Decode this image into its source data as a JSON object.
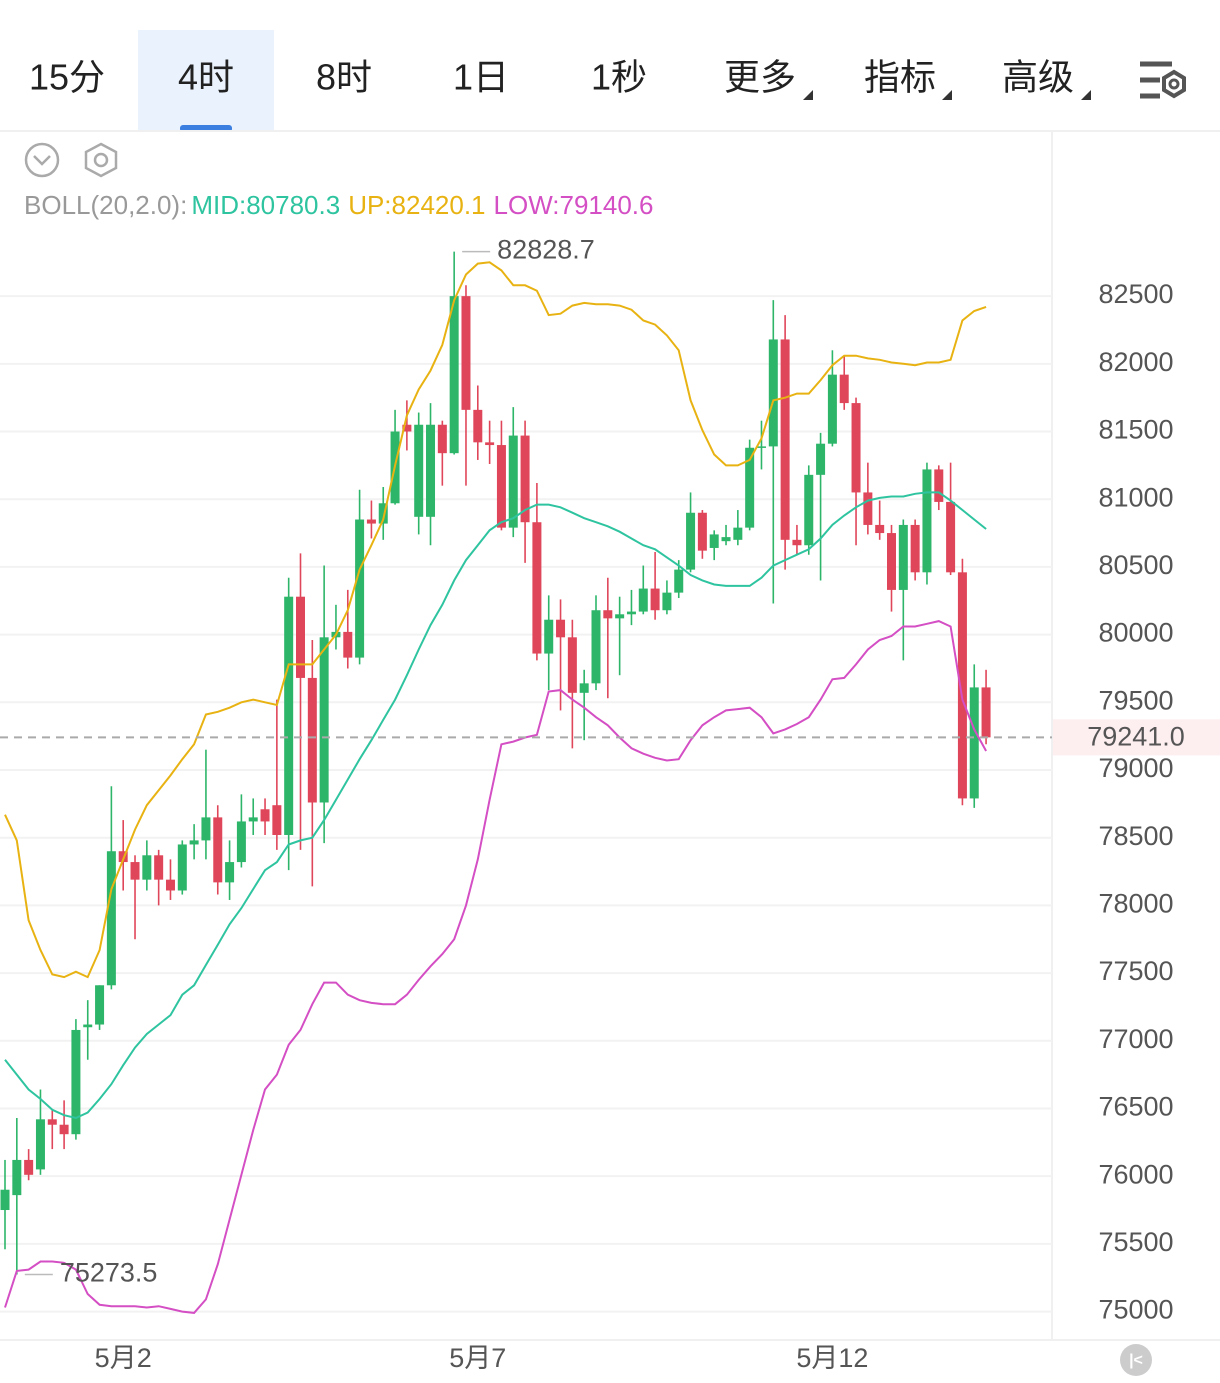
{
  "tabs": [
    "15分",
    "4时",
    "8时",
    "1日",
    "1秒",
    "更多",
    "指标",
    "高级"
  ],
  "selected_tab": 1,
  "chart_data": {
    "type": "candlestick",
    "indicator_label": "BOLL(20,2.0):",
    "categories": [
      null,
      null,
      null,
      null,
      null,
      null,
      null,
      null,
      null,
      null,
      "5月2",
      null,
      null,
      null,
      null,
      null,
      null,
      null,
      null,
      null,
      null,
      null,
      null,
      null,
      null,
      null,
      null,
      null,
      null,
      null,
      null,
      null,
      null,
      null,
      null,
      null,
      null,
      null,
      null,
      null,
      "5月7",
      null,
      null,
      null,
      null,
      null,
      null,
      null,
      null,
      null,
      null,
      null,
      null,
      null,
      null,
      null,
      null,
      null,
      null,
      null,
      null,
      null,
      null,
      null,
      null,
      null,
      null,
      null,
      null,
      null,
      "5月12",
      null,
      null,
      null,
      null,
      null,
      null,
      null,
      null,
      null,
      null,
      null,
      null,
      null
    ],
    "up_color": "#2db56a",
    "down_color": "#e0465a",
    "open": [
      75750,
      75860,
      76120,
      76050,
      76420,
      76380,
      76310,
      77100,
      77120,
      77410,
      78400,
      78320,
      78190,
      78370,
      78190,
      78110,
      78450,
      78480,
      78650,
      78170,
      78320,
      78620,
      78710,
      78740,
      78520,
      80280,
      79680,
      78760,
      79980,
      80020,
      79830,
      80850,
      80820,
      80970,
      81550,
      80870,
      80870,
      81550,
      81340,
      82500,
      81660,
      81420,
      81400,
      80790,
      81470,
      80830,
      79860,
      80110,
      79980,
      79570,
      79640,
      80180,
      80120,
      80150,
      80170,
      80340,
      80180,
      80310,
      80480,
      80900,
      80640,
      80690,
      80700,
      80790,
      81380,
      81390,
      82180,
      80700,
      80660,
      81180,
      81410,
      81920,
      81710,
      81050,
      80810,
      80750,
      80330,
      80810,
      80460,
      81220,
      80980,
      80460,
      78790,
      79610
    ],
    "high": [
      76120,
      76430,
      76200,
      76640,
      76490,
      76560,
      77160,
      77300,
      77410,
      78880,
      78630,
      78370,
      78480,
      78410,
      78340,
      78480,
      78600,
      79150,
      78740,
      78480,
      78820,
      78790,
      78790,
      79520,
      80420,
      80600,
      79960,
      80510,
      80220,
      80330,
      81070,
      80990,
      81090,
      81660,
      81730,
      81640,
      81710,
      81580,
      82828.7,
      82580,
      81840,
      81580,
      81580,
      81680,
      81580,
      81120,
      80290,
      80260,
      80110,
      79740,
      80290,
      80420,
      80280,
      80330,
      80510,
      80610,
      80400,
      80550,
      81050,
      80920,
      80770,
      80810,
      80920,
      81440,
      81580,
      82470,
      82360,
      80810,
      81250,
      81490,
      82100,
      82060,
      81750,
      81270,
      80990,
      80810,
      80850,
      80850,
      81270,
      81250,
      81270,
      80560,
      79780,
      79740
    ],
    "low": [
      75460,
      75273.5,
      75970,
      76010,
      76200,
      76200,
      76270,
      76860,
      77080,
      77380,
      78110,
      77750,
      78110,
      78000,
      78040,
      78080,
      78340,
      78340,
      78080,
      78040,
      78280,
      78520,
      78520,
      78410,
      78260,
      78410,
      78140,
      78460,
      79890,
      79750,
      79780,
      80710,
      80700,
      80960,
      81360,
      80740,
      80660,
      81100,
      81330,
      81100,
      81290,
      81260,
      80770,
      80720,
      80530,
      79810,
      79590,
      79440,
      79160,
      79220,
      79590,
      79530,
      79700,
      80070,
      80150,
      80110,
      80150,
      80270,
      80460,
      80560,
      80550,
      80660,
      80660,
      80770,
      81220,
      80230,
      80480,
      80590,
      80590,
      80400,
      81390,
      81660,
      80660,
      80740,
      80700,
      80170,
      79810,
      80400,
      80370,
      80920,
      80440,
      78740,
      78720,
      79190
    ],
    "close": [
      75900,
      76120,
      76010,
      76420,
      76380,
      76310,
      77080,
      77120,
      77410,
      78400,
      78320,
      78190,
      78370,
      78190,
      78110,
      78450,
      78480,
      78650,
      78170,
      78320,
      78620,
      78650,
      78620,
      78520,
      80280,
      79680,
      78760,
      79980,
      80020,
      79830,
      80850,
      80820,
      80970,
      81500,
      81500,
      81550,
      81550,
      81340,
      82500,
      81660,
      81420,
      81400,
      80790,
      81470,
      80830,
      79860,
      80110,
      79980,
      79570,
      79640,
      80180,
      80120,
      80150,
      80170,
      80340,
      80180,
      80310,
      80480,
      80900,
      80620,
      80740,
      80720,
      80790,
      81380,
      81390,
      82180,
      80700,
      80660,
      81180,
      81410,
      81920,
      81710,
      81050,
      80810,
      80750,
      80330,
      80810,
      80460,
      81220,
      80980,
      80460,
      78790,
      79610,
      79241
    ],
    "series": [
      {
        "name": "MID:80780.3",
        "color": "#2fc4a0",
        "values": [
          76860,
          76750,
          76640,
          76570,
          76490,
          76450,
          76430,
          76470,
          76570,
          76680,
          76820,
          76950,
          77050,
          77120,
          77190,
          77340,
          77410,
          77560,
          77710,
          77860,
          77980,
          78120,
          78260,
          78320,
          78450,
          78480,
          78500,
          78630,
          78780,
          78930,
          79080,
          79220,
          79370,
          79520,
          79700,
          79890,
          80070,
          80220,
          80400,
          80550,
          80660,
          80770,
          80830,
          80860,
          80920,
          80960,
          80960,
          80940,
          80900,
          80860,
          80830,
          80800,
          80760,
          80710,
          80660,
          80630,
          80570,
          80510,
          80440,
          80400,
          80370,
          80360,
          80360,
          80360,
          80420,
          80510,
          80550,
          80590,
          80630,
          80710,
          80810,
          80880,
          80940,
          80990,
          81010,
          81020,
          81020,
          81040,
          81050,
          81050,
          80990,
          80920,
          80850,
          80780.3
        ]
      },
      {
        "name": "UP:82420.1",
        "color": "#e8b312",
        "values": [
          78670,
          78480,
          77890,
          77670,
          77490,
          77470,
          77510,
          77470,
          77670,
          78120,
          78340,
          78560,
          78740,
          78850,
          78960,
          79080,
          79190,
          79410,
          79430,
          79460,
          79500,
          79520,
          79500,
          79480,
          79780,
          79780,
          79780,
          79890,
          80000,
          80180,
          80480,
          80660,
          80850,
          81250,
          81620,
          81810,
          81950,
          82140,
          82470,
          82660,
          82740,
          82750,
          82690,
          82580,
          82580,
          82540,
          82360,
          82370,
          82430,
          82450,
          82440,
          82440,
          82430,
          82400,
          82320,
          82290,
          82210,
          82100,
          81730,
          81510,
          81330,
          81250,
          81250,
          81290,
          81450,
          81730,
          81750,
          81780,
          81780,
          81880,
          81990,
          82060,
          82060,
          82040,
          82030,
          82010,
          82000,
          81990,
          82010,
          82010,
          82030,
          82320,
          82390,
          82420.1
        ]
      },
      {
        "name": "LOW:79140.6",
        "color": "#d44ec4",
        "values": [
          75030,
          75300,
          75310,
          75370,
          75370,
          75360,
          75310,
          75130,
          75050,
          75040,
          75040,
          75040,
          75030,
          75040,
          75020,
          75000,
          74990,
          75090,
          75350,
          75680,
          76010,
          76340,
          76640,
          76750,
          76970,
          77080,
          77270,
          77430,
          77430,
          77340,
          77300,
          77280,
          77270,
          77270,
          77340,
          77450,
          77550,
          77640,
          77750,
          78000,
          78340,
          78780,
          79190,
          79210,
          79240,
          79260,
          79580,
          79590,
          79520,
          79460,
          79390,
          79330,
          79240,
          79160,
          79120,
          79090,
          79070,
          79080,
          79220,
          79330,
          79390,
          79440,
          79450,
          79460,
          79390,
          79270,
          79300,
          79340,
          79390,
          79520,
          79670,
          79680,
          79780,
          79890,
          79960,
          79990,
          80060,
          80060,
          80080,
          80100,
          80060,
          79520,
          79300,
          79140.6
        ]
      }
    ],
    "ylim": [
      74790,
      83690
    ],
    "yticks": [
      75000,
      75500,
      76000,
      76500,
      77000,
      77500,
      78000,
      78500,
      79000,
      79500,
      80000,
      80500,
      81000,
      81500,
      82000,
      82500
    ],
    "grid": true,
    "last_price": {
      "value": 79241.0,
      "label": "79241.0"
    },
    "annotations": [
      82828.7,
      75273.5
    ]
  }
}
